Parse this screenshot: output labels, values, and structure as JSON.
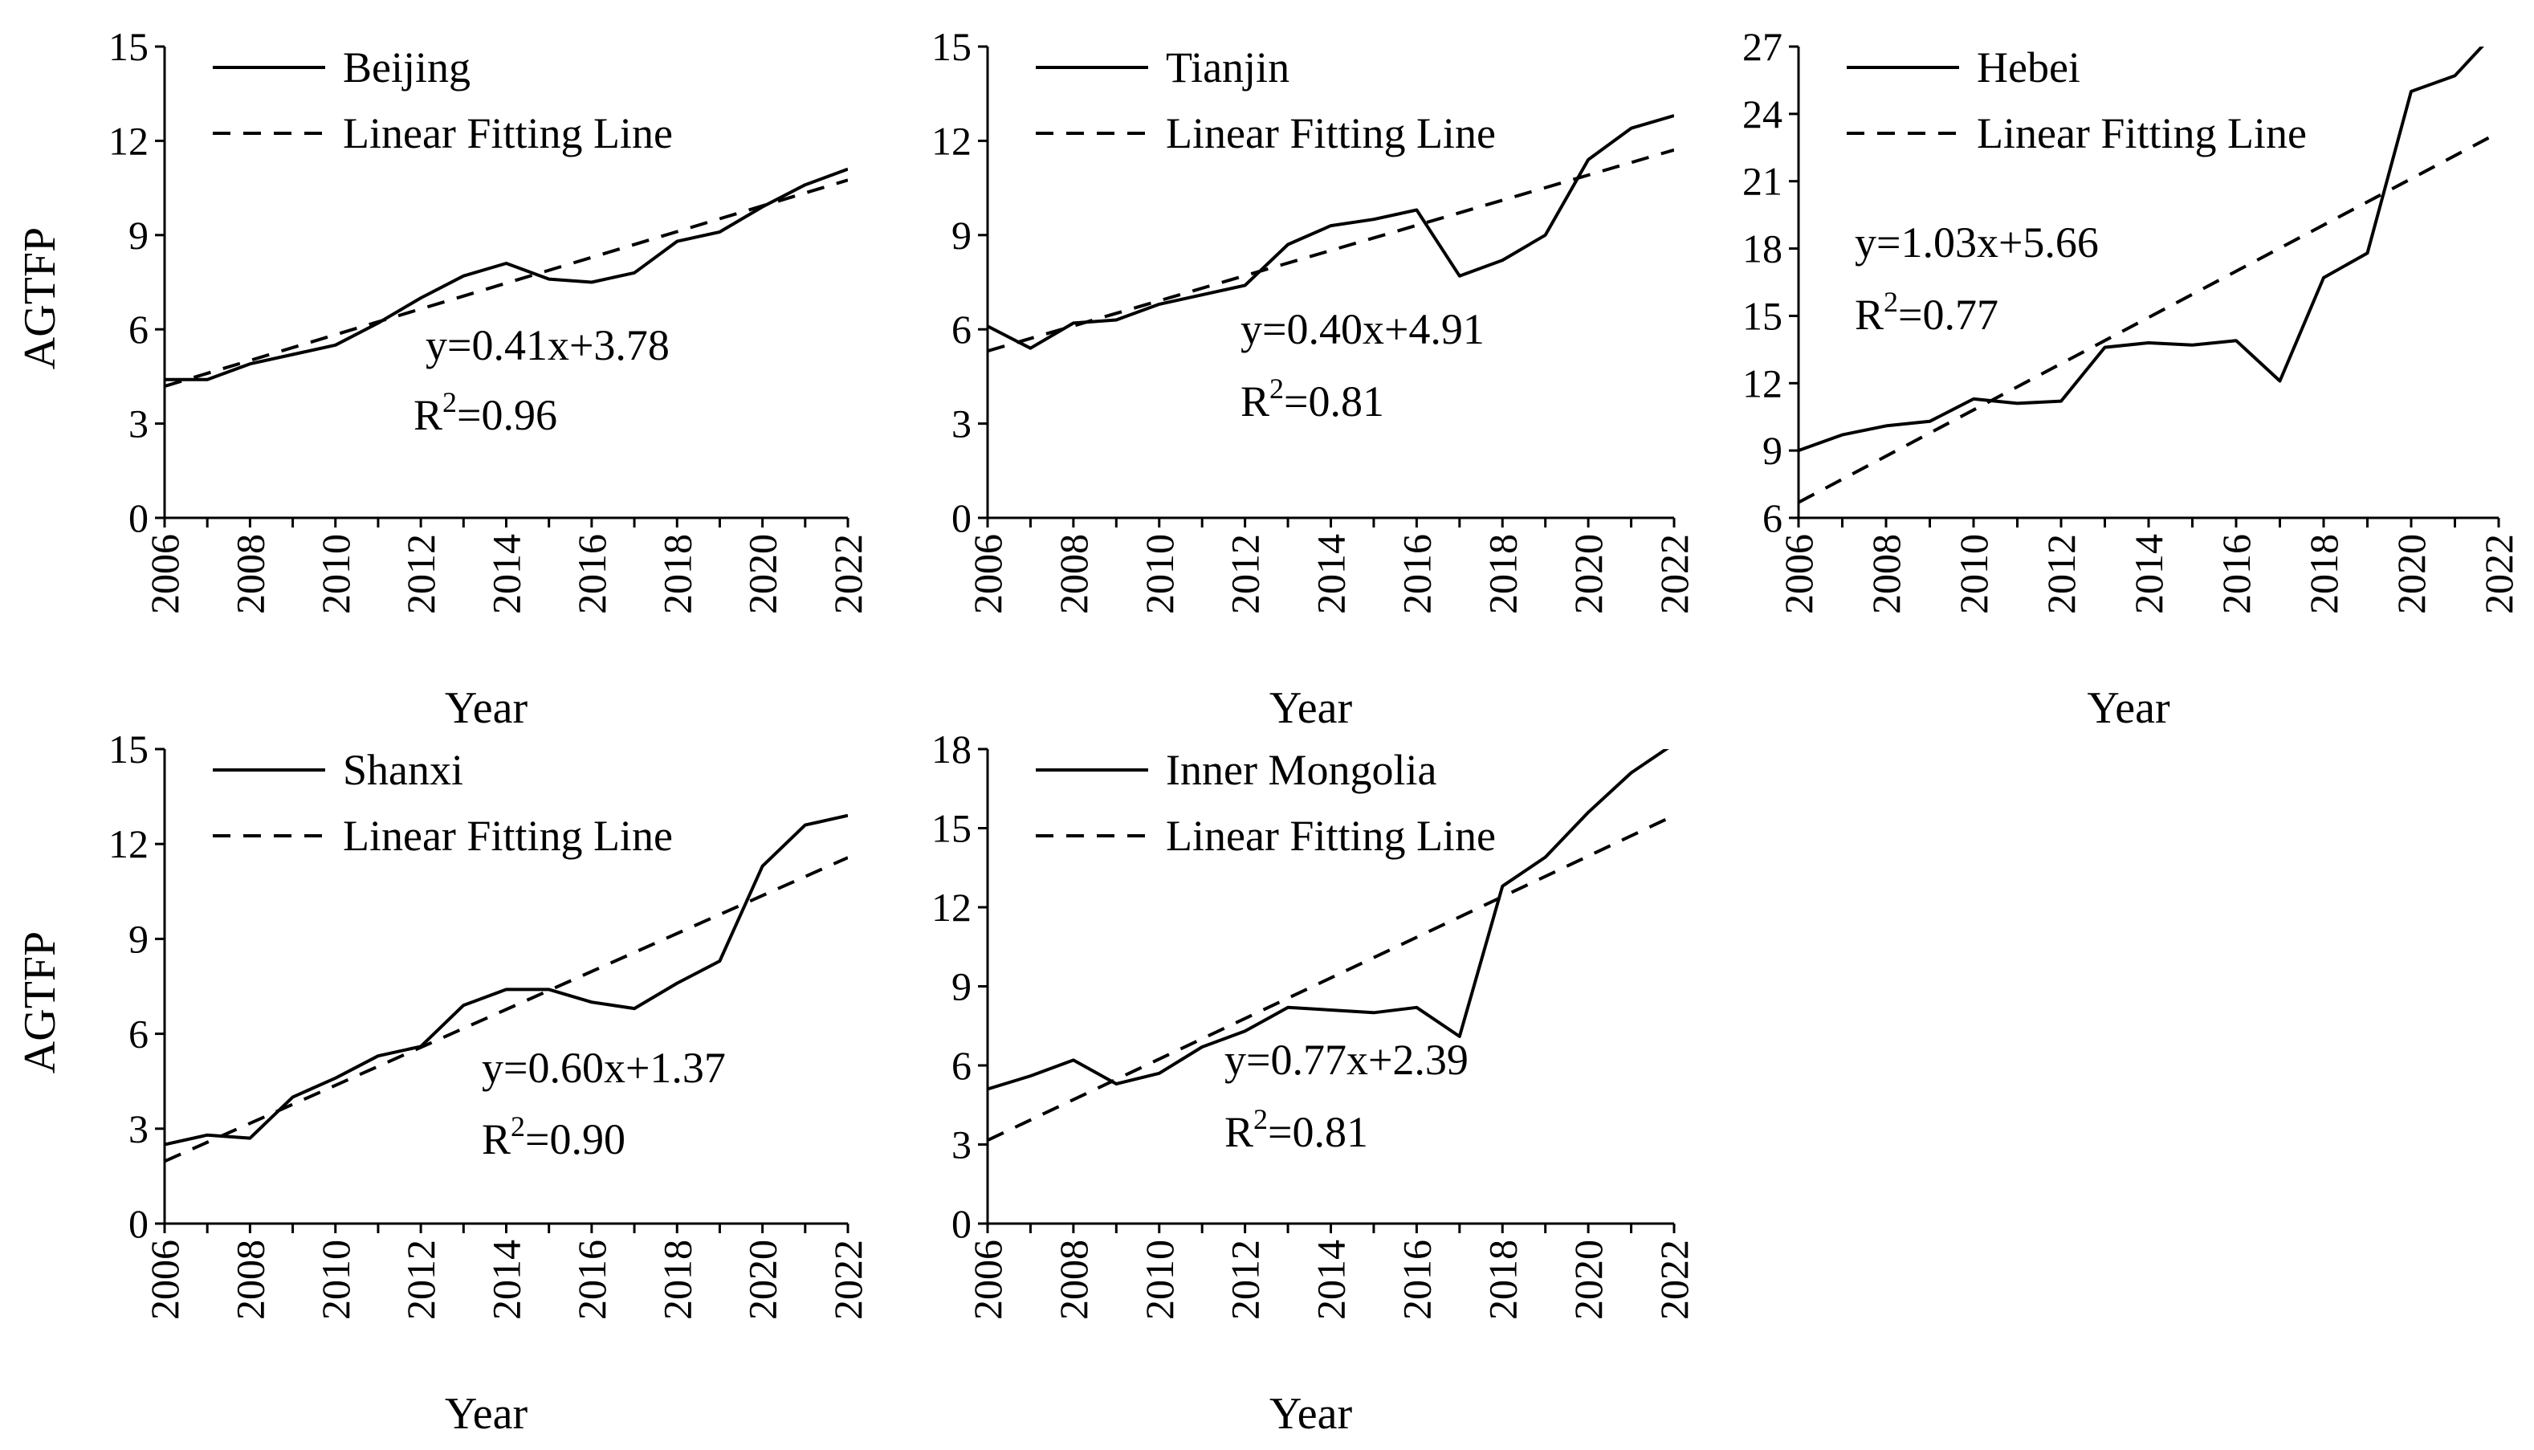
{
  "figure": {
    "ylabel": "AGTFP",
    "xlabel": "Year",
    "fit_legend_label": "Linear Fitting Line"
  },
  "chart_data": [
    {
      "type": "line",
      "title": "Beijing",
      "xlabel": "Year",
      "ylabel": "AGTFP",
      "x": [
        2006,
        2007,
        2008,
        2009,
        2010,
        2011,
        2012,
        2013,
        2014,
        2015,
        2016,
        2017,
        2018,
        2019,
        2020,
        2021,
        2022
      ],
      "xticks": [
        2006,
        2008,
        2010,
        2012,
        2014,
        2016,
        2018,
        2020,
        2022
      ],
      "xlim": [
        2006,
        2022
      ],
      "ylim": [
        0,
        15
      ],
      "yticks": [
        0,
        3,
        6,
        9,
        12,
        15
      ],
      "series": [
        {
          "name": "Beijing",
          "style": "solid",
          "values": [
            4.4,
            4.4,
            4.9,
            5.2,
            5.5,
            6.2,
            7.0,
            7.7,
            8.1,
            7.6,
            7.5,
            7.8,
            8.8,
            9.1,
            9.9,
            10.6,
            11.1
          ]
        },
        {
          "name": "Linear Fitting Line",
          "style": "dashed",
          "slope": 0.41,
          "intercept": 3.78
        }
      ],
      "equation": "y=0.41x+3.78",
      "r2": "0.96"
    },
    {
      "type": "line",
      "title": "Tianjin",
      "xlabel": "Year",
      "ylabel": "",
      "x": [
        2006,
        2007,
        2008,
        2009,
        2010,
        2011,
        2012,
        2013,
        2014,
        2015,
        2016,
        2017,
        2018,
        2019,
        2020,
        2021,
        2022
      ],
      "xticks": [
        2006,
        2008,
        2010,
        2012,
        2014,
        2016,
        2018,
        2020,
        2022
      ],
      "xlim": [
        2006,
        2022
      ],
      "ylim": [
        0,
        15
      ],
      "yticks": [
        0,
        3,
        6,
        9,
        12,
        15
      ],
      "series": [
        {
          "name": "Tianjin",
          "style": "solid",
          "values": [
            6.1,
            5.4,
            6.2,
            6.3,
            6.8,
            7.1,
            7.4,
            8.7,
            9.3,
            9.5,
            9.8,
            7.7,
            8.2,
            9.0,
            11.4,
            12.4,
            12.8
          ]
        },
        {
          "name": "Linear Fitting Line",
          "style": "dashed",
          "slope": 0.4,
          "intercept": 4.91
        }
      ],
      "equation": "y=0.40x+4.91",
      "r2": "0.81"
    },
    {
      "type": "line",
      "title": "Hebei",
      "xlabel": "Year",
      "ylabel": "",
      "x": [
        2006,
        2007,
        2008,
        2009,
        2010,
        2011,
        2012,
        2013,
        2014,
        2015,
        2016,
        2017,
        2018,
        2019,
        2020,
        2021,
        2022
      ],
      "xticks": [
        2006,
        2008,
        2010,
        2012,
        2014,
        2016,
        2018,
        2020,
        2022
      ],
      "xlim": [
        2006,
        2022
      ],
      "ylim": [
        6,
        27
      ],
      "yticks": [
        6,
        9,
        12,
        15,
        18,
        21,
        24,
        27
      ],
      "series": [
        {
          "name": "Hebei",
          "style": "solid",
          "values": [
            9.0,
            9.7,
            10.1,
            10.3,
            11.3,
            11.1,
            11.2,
            13.6,
            13.8,
            13.7,
            13.9,
            12.1,
            16.7,
            17.8,
            25.0,
            25.7,
            27.8
          ]
        },
        {
          "name": "Linear Fitting Line",
          "style": "dashed",
          "slope": 1.03,
          "intercept": 5.66
        }
      ],
      "equation": "y=1.03x+5.66",
      "r2": "0.77"
    },
    {
      "type": "line",
      "title": "Shanxi",
      "xlabel": "Year",
      "ylabel": "AGTFP",
      "x": [
        2006,
        2007,
        2008,
        2009,
        2010,
        2011,
        2012,
        2013,
        2014,
        2015,
        2016,
        2017,
        2018,
        2019,
        2020,
        2021,
        2022
      ],
      "xticks": [
        2006,
        2008,
        2010,
        2012,
        2014,
        2016,
        2018,
        2020,
        2022
      ],
      "xlim": [
        2006,
        2022
      ],
      "ylim": [
        0,
        15
      ],
      "yticks": [
        0,
        3,
        6,
        9,
        12,
        15
      ],
      "series": [
        {
          "name": "Shanxi",
          "style": "solid",
          "values": [
            2.5,
            2.8,
            2.7,
            4.0,
            4.6,
            5.3,
            5.6,
            6.9,
            7.4,
            7.4,
            7.0,
            6.8,
            7.6,
            8.3,
            11.3,
            12.6,
            12.9
          ]
        },
        {
          "name": "Linear Fitting Line",
          "style": "dashed",
          "slope": 0.6,
          "intercept": 1.37
        }
      ],
      "equation": "y=0.60x+1.37",
      "r2": "0.90"
    },
    {
      "type": "line",
      "title": "Inner Mongolia",
      "xlabel": "Year",
      "ylabel": "",
      "x": [
        2006,
        2007,
        2008,
        2009,
        2010,
        2011,
        2012,
        2013,
        2014,
        2015,
        2016,
        2017,
        2018,
        2019,
        2020,
        2021,
        2022
      ],
      "xticks": [
        2006,
        2008,
        2010,
        2012,
        2014,
        2016,
        2018,
        2020,
        2022
      ],
      "xlim": [
        2006,
        2022
      ],
      "ylim": [
        0,
        18
      ],
      "yticks": [
        0,
        3,
        6,
        9,
        12,
        15,
        18
      ],
      "series": [
        {
          "name": "Inner Mongolia",
          "style": "solid",
          "values": [
            5.1,
            5.6,
            6.2,
            5.3,
            5.7,
            6.7,
            7.3,
            8.2,
            8.1,
            8.0,
            8.2,
            7.1,
            12.8,
            13.9,
            15.6,
            17.1,
            18.2
          ]
        },
        {
          "name": "Linear Fitting Line",
          "style": "dashed",
          "slope": 0.77,
          "intercept": 2.39
        }
      ],
      "equation": "y=0.77x+2.39",
      "r2": "0.81"
    }
  ]
}
